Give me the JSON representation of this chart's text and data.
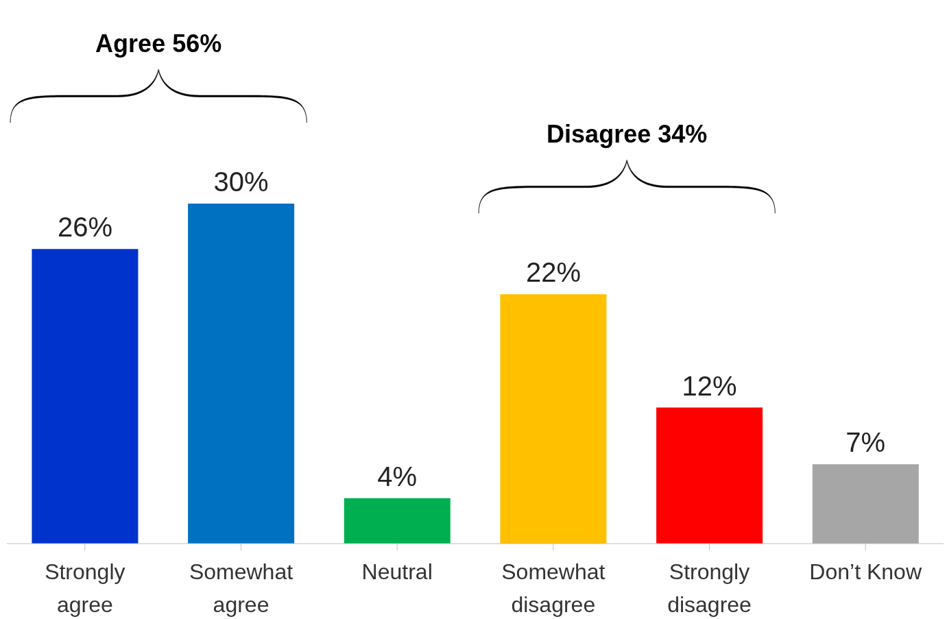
{
  "chart_data": {
    "type": "bar",
    "categories": [
      "Strongly agree",
      "Somewhat agree",
      "Neutral",
      "Somewhat disagree",
      "Strongly disagree",
      "Don’t Know"
    ],
    "values": [
      26,
      30,
      4,
      22,
      12,
      7
    ],
    "colors": [
      "#0033cc",
      "#0070c0",
      "#00b050",
      "#ffc000",
      "#ff0000",
      "#a6a6a6"
    ],
    "value_labels": [
      "26%",
      "30%",
      "4%",
      "22%",
      "12%",
      "7%"
    ],
    "annotations": [
      "Agree 56%",
      "Disagree 34%"
    ]
  }
}
